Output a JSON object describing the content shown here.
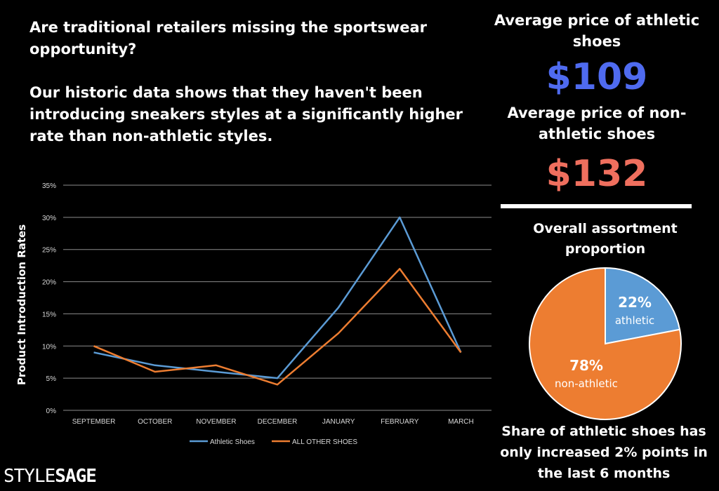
{
  "headline": {
    "line1": "Are traditional retailers missing the sportswear opportunity?",
    "line2": "Our historic data shows that they haven't been introducing sneakers styles at a significantly higher rate than non-athletic styles."
  },
  "stats": {
    "athletic_label": "Average price of athletic shoes",
    "athletic_value": "$109",
    "athletic_color": "#4f6bf0",
    "nonathletic_label": "Average price of non-athletic shoes",
    "nonathletic_value": "$132",
    "nonathletic_color": "#ef6f5e"
  },
  "chart_data": [
    {
      "type": "line",
      "title": "",
      "xlabel": "",
      "ylabel": "Product Introduction Rates",
      "categories": [
        "SEPTEMBER",
        "OCTOBER",
        "NOVEMBER",
        "DECEMBER",
        "JANUARY",
        "FEBRUARY",
        "MARCH"
      ],
      "yticks": [
        "0%",
        "5%",
        "10%",
        "15%",
        "20%",
        "25%",
        "30%",
        "35%"
      ],
      "ylim": [
        0,
        35
      ],
      "grid": true,
      "legend": "bottom",
      "series": [
        {
          "name": "Athletic Shoes",
          "color": "#5b9bd5",
          "values": [
            9,
            7,
            6,
            5,
            16,
            30,
            9
          ]
        },
        {
          "name": "ALL OTHER SHOES",
          "color": "#ed7d31",
          "values": [
            10,
            6,
            7,
            4,
            12,
            22,
            9
          ]
        }
      ]
    },
    {
      "type": "pie",
      "title": "Overall assortment proportion",
      "slices": [
        {
          "name": "athletic",
          "value": 22,
          "label": "22%",
          "color": "#5b9bd5"
        },
        {
          "name": "non-athletic",
          "value": 78,
          "label": "78%",
          "color": "#ed7d31"
        }
      ]
    }
  ],
  "footnote": "Share of athletic shoes has only increased 2% points in the last 6 months",
  "logo": {
    "part1": "STYLE",
    "part2": "SAGE"
  }
}
